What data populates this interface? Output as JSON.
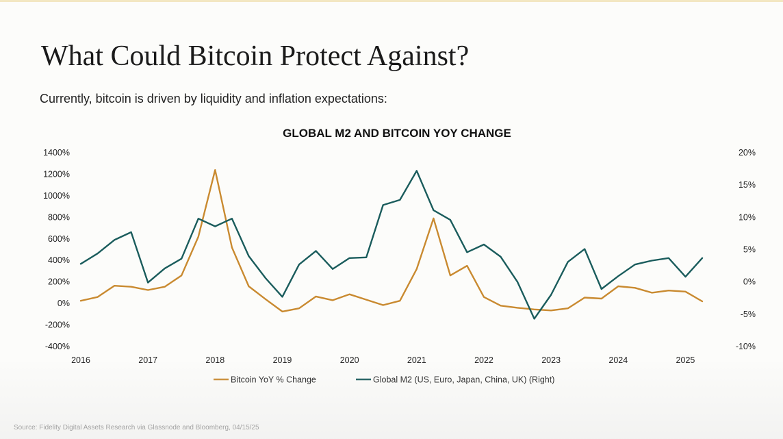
{
  "slide": {
    "title": "What Could Bitcoin Protect Against?",
    "subtitle": "Currently, bitcoin is driven by liquidity and inflation expectations:",
    "source": "Source: Fidelity Digital Assets Research via Glassnode and Bloomberg, 04/15/25"
  },
  "chart_data": {
    "type": "line",
    "title": "GLOBAL M2 AND BITCOIN YOY CHANGE",
    "x_ticks": [
      "2016",
      "2017",
      "2018",
      "2019",
      "2020",
      "2021",
      "2022",
      "2023",
      "2024",
      "2025"
    ],
    "x_range": [
      2016,
      2025.25
    ],
    "y_left": {
      "min": -400,
      "max": 1400,
      "step": 200,
      "ticks": [
        "-400%",
        "-200%",
        "0%",
        "200%",
        "400%",
        "600%",
        "800%",
        "1000%",
        "1200%",
        "1400%"
      ]
    },
    "y_right": {
      "min": -10,
      "max": 20,
      "step": 5,
      "ticks": [
        "-10%",
        "-5%",
        "0%",
        "5%",
        "10%",
        "15%",
        "20%"
      ]
    },
    "grid": false,
    "legend_position": "bottom",
    "series": [
      {
        "name": "Bitcoin YoY % Change",
        "axis": "left",
        "color": "#c98a30",
        "x": [
          2016.0,
          2016.25,
          2016.5,
          2016.75,
          2017.0,
          2017.25,
          2017.5,
          2017.75,
          2018.0,
          2018.25,
          2018.5,
          2018.75,
          2019.0,
          2019.25,
          2019.5,
          2019.75,
          2020.0,
          2020.25,
          2020.5,
          2020.75,
          2021.0,
          2021.25,
          2021.5,
          2021.75,
          2022.0,
          2022.25,
          2022.5,
          2022.75,
          2023.0,
          2023.25,
          2023.5,
          2023.75,
          2024.0,
          2024.25,
          2024.5,
          2024.75,
          2025.0,
          2025.25
        ],
        "values": [
          25,
          60,
          165,
          155,
          125,
          155,
          260,
          620,
          1240,
          520,
          160,
          40,
          -75,
          -45,
          65,
          30,
          85,
          35,
          -15,
          25,
          320,
          790,
          260,
          350,
          60,
          -20,
          -40,
          -55,
          -65,
          -45,
          55,
          45,
          160,
          145,
          100,
          120,
          110,
          20
        ]
      },
      {
        "name": "Global M2 (US, Euro, Japan, China, UK) (Right)",
        "axis": "right",
        "color": "#1a5c5c",
        "x": [
          2016.0,
          2016.25,
          2016.5,
          2016.75,
          2017.0,
          2017.25,
          2017.5,
          2017.75,
          2018.0,
          2018.25,
          2018.5,
          2018.75,
          2019.0,
          2019.25,
          2019.5,
          2019.75,
          2020.0,
          2020.25,
          2020.5,
          2020.75,
          2021.0,
          2021.25,
          2021.5,
          2021.75,
          2022.0,
          2022.25,
          2022.5,
          2022.75,
          2023.0,
          2023.25,
          2023.5,
          2023.75,
          2024.0,
          2024.25,
          2024.5,
          2024.75,
          2025.0,
          2025.25
        ],
        "values": [
          2.8,
          4.4,
          6.5,
          7.7,
          -0.1,
          2.1,
          3.6,
          9.8,
          8.6,
          9.8,
          4.0,
          0.6,
          -2.3,
          2.7,
          4.8,
          2.0,
          3.7,
          3.8,
          11.9,
          12.7,
          17.2,
          11.1,
          9.6,
          4.6,
          5.8,
          3.9,
          0.0,
          -5.7,
          -2.0,
          3.1,
          5.1,
          -1.1,
          0.9,
          2.7,
          3.3,
          3.7,
          0.8,
          3.7
        ]
      }
    ]
  }
}
